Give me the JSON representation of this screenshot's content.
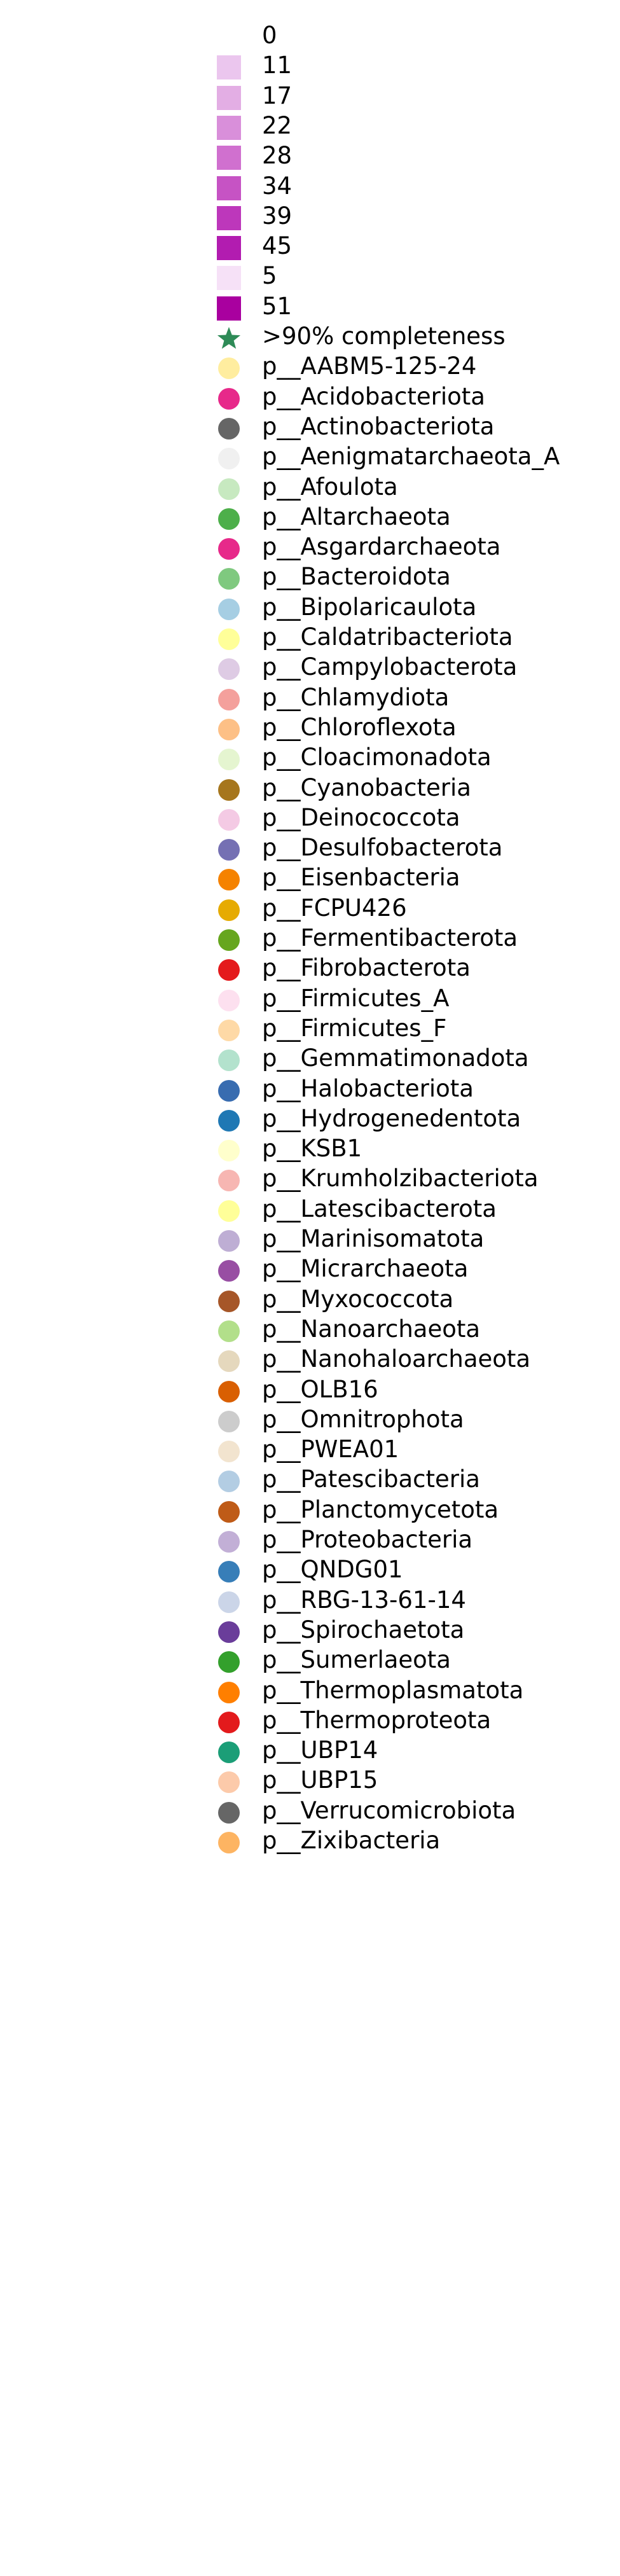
{
  "chart_data": {
    "type": "legend",
    "title": "",
    "entries": [
      {
        "label": "0",
        "marker": "square",
        "color": "#ffffff"
      },
      {
        "label": "11",
        "marker": "square",
        "color": "#ebc6ee"
      },
      {
        "label": "17",
        "marker": "square",
        "color": "#e3aee4"
      },
      {
        "label": "22",
        "marker": "square",
        "color": "#d98fda"
      },
      {
        "label": "28",
        "marker": "square",
        "color": "#d070cf"
      },
      {
        "label": "34",
        "marker": "square",
        "color": "#c653c4"
      },
      {
        "label": "39",
        "marker": "square",
        "color": "#bd37bb"
      },
      {
        "label": "45",
        "marker": "square",
        "color": "#b21cb0"
      },
      {
        "label": "5",
        "marker": "square",
        "color": "#f6e1f7"
      },
      {
        "label": "51",
        "marker": "square",
        "color": "#a9009f"
      },
      {
        "label": ">90% completeness",
        "marker": "star",
        "color": "#2e8b57"
      },
      {
        "label": "p__AABM5-125-24",
        "marker": "circle",
        "color": "#ffed9f"
      },
      {
        "label": "p__Acidobacteriota",
        "marker": "circle",
        "color": "#e7298a"
      },
      {
        "label": "p__Actinobacteriota",
        "marker": "circle",
        "color": "#666666"
      },
      {
        "label": "p__Aenigmatarchaeota_A",
        "marker": "circle",
        "color": "#f0f0f0"
      },
      {
        "label": "p__Afoulota",
        "marker": "circle",
        "color": "#c7e9c0"
      },
      {
        "label": "p__Altarchaeota",
        "marker": "circle",
        "color": "#4daf4a"
      },
      {
        "label": "p__Asgardarchaeota",
        "marker": "circle",
        "color": "#e7298a"
      },
      {
        "label": "p__Bacteroidota",
        "marker": "circle",
        "color": "#7fc97f"
      },
      {
        "label": "p__Bipolaricaulota",
        "marker": "circle",
        "color": "#a6cee3"
      },
      {
        "label": "p__Caldatribacteriota",
        "marker": "circle",
        "color": "#ffff99"
      },
      {
        "label": "p__Campylobacterota",
        "marker": "circle",
        "color": "#decbe4"
      },
      {
        "label": "p__Chlamydiota",
        "marker": "circle",
        "color": "#f4a09c"
      },
      {
        "label": "p__Chloroflexota",
        "marker": "circle",
        "color": "#fdc086"
      },
      {
        "label": "p__Cloacimonadota",
        "marker": "circle",
        "color": "#e5f5d0"
      },
      {
        "label": "p__Cyanobacteria",
        "marker": "circle",
        "color": "#a6761d"
      },
      {
        "label": "p__Deinococcota",
        "marker": "circle",
        "color": "#f4cae4"
      },
      {
        "label": "p__Desulfobacterota",
        "marker": "circle",
        "color": "#7570b3"
      },
      {
        "label": "p__Eisenbacteria",
        "marker": "circle",
        "color": "#f58200"
      },
      {
        "label": "p__FCPU426",
        "marker": "circle",
        "color": "#e6ab02"
      },
      {
        "label": "p__Fermentibacterota",
        "marker": "circle",
        "color": "#66a61e"
      },
      {
        "label": "p__Fibrobacterota",
        "marker": "circle",
        "color": "#e41a1c"
      },
      {
        "label": "p__Firmicutes_A",
        "marker": "circle",
        "color": "#fde0ef"
      },
      {
        "label": "p__Firmicutes_F",
        "marker": "circle",
        "color": "#fed9a6"
      },
      {
        "label": "p__Gemmatimonadota",
        "marker": "circle",
        "color": "#b3e2cd"
      },
      {
        "label": "p__Halobacteriota",
        "marker": "circle",
        "color": "#386cb0"
      },
      {
        "label": "p__Hydrogenedentota",
        "marker": "circle",
        "color": "#1f78b4"
      },
      {
        "label": "p__KSB1",
        "marker": "circle",
        "color": "#ffffcc"
      },
      {
        "label": "p__Krumholzibacteriota",
        "marker": "circle",
        "color": "#f7b6b2"
      },
      {
        "label": "p__Latescibacterota",
        "marker": "circle",
        "color": "#ffff99"
      },
      {
        "label": "p__Marinisomatota",
        "marker": "circle",
        "color": "#beaed4"
      },
      {
        "label": "p__Micrarchaeota",
        "marker": "circle",
        "color": "#984ea3"
      },
      {
        "label": "p__Myxococcota",
        "marker": "circle",
        "color": "#a65628"
      },
      {
        "label": "p__Nanoarchaeota",
        "marker": "circle",
        "color": "#b2df8a"
      },
      {
        "label": "p__Nanohaloarchaeota",
        "marker": "circle",
        "color": "#e5d8bd"
      },
      {
        "label": "p__OLB16",
        "marker": "circle",
        "color": "#d95f02"
      },
      {
        "label": "p__Omnitrophota",
        "marker": "circle",
        "color": "#cccccc"
      },
      {
        "label": "p__PWEA01",
        "marker": "circle",
        "color": "#f2e4cf"
      },
      {
        "label": "p__Patescibacteria",
        "marker": "circle",
        "color": "#b3cde3"
      },
      {
        "label": "p__Planctomycetota",
        "marker": "circle",
        "color": "#bf5b17"
      },
      {
        "label": "p__Proteobacteria",
        "marker": "circle",
        "color": "#c2afd6"
      },
      {
        "label": "p__QNDG01",
        "marker": "circle",
        "color": "#377eb8"
      },
      {
        "label": "p__RBG-13-61-14",
        "marker": "circle",
        "color": "#cbd5e8"
      },
      {
        "label": "p__Spirochaetota",
        "marker": "circle",
        "color": "#6a3d9a"
      },
      {
        "label": "p__Sumerlaeota",
        "marker": "circle",
        "color": "#33a02c"
      },
      {
        "label": "p__Thermoplasmatota",
        "marker": "circle",
        "color": "#ff7f00"
      },
      {
        "label": "p__Thermoproteota",
        "marker": "circle",
        "color": "#e31a1c"
      },
      {
        "label": "p__UBP14",
        "marker": "circle",
        "color": "#1b9e77"
      },
      {
        "label": "p__UBP15",
        "marker": "circle",
        "color": "#fccaaa"
      },
      {
        "label": "p__Verrucomicrobiota",
        "marker": "circle",
        "color": "#666666"
      },
      {
        "label": "p__Zixibacteria",
        "marker": "circle",
        "color": "#fdb462"
      }
    ]
  }
}
